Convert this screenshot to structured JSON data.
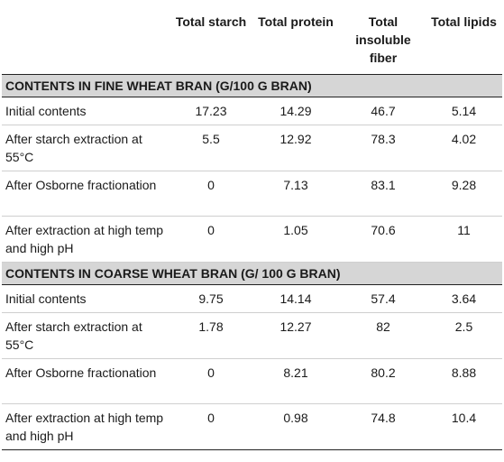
{
  "headers": [
    "",
    "Total starch",
    "Total protein",
    "Total insoluble fiber",
    "Total lipids"
  ],
  "sections": [
    {
      "title": "CONTENTS IN FINE WHEAT BRAN (G/100 G BRAN)",
      "rows": [
        {
          "label": "Initial contents",
          "values": [
            "17.23",
            "14.29",
            "46.7",
            "5.14"
          ]
        },
        {
          "label": "After starch extraction at 55°C",
          "values": [
            "5.5",
            "12.92",
            "78.3",
            "4.02"
          ]
        },
        {
          "label": "After Osborne fractionation",
          "values": [
            "0",
            "7.13",
            "83.1",
            "9.28"
          ]
        },
        {
          "label": "After extraction at high temp and high pH",
          "values": [
            "0",
            "1.05",
            "70.6",
            "11"
          ]
        }
      ]
    },
    {
      "title": "CONTENTS IN COARSE WHEAT BRAN (G/ 100 G BRAN)",
      "rows": [
        {
          "label": "Initial contents",
          "values": [
            "9.75",
            "14.14",
            "57.4",
            "3.64"
          ]
        },
        {
          "label": "After starch extraction at 55°C",
          "values": [
            "1.78",
            "12.27",
            "82",
            "2.5"
          ]
        },
        {
          "label": "After Osborne fractionation",
          "values": [
            "0",
            "8.21",
            "80.2",
            "8.88"
          ]
        },
        {
          "label": "After extraction at high temp and high pH",
          "values": [
            "0",
            "0.98",
            "74.8",
            "10.4"
          ]
        }
      ]
    }
  ]
}
